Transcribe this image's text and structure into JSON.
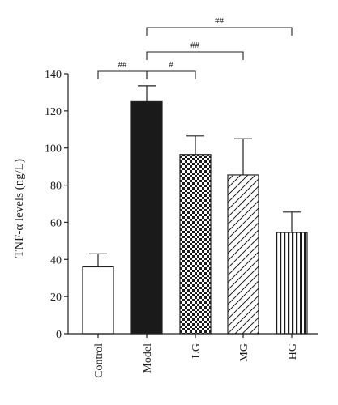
{
  "chart_data": {
    "type": "bar",
    "ylabel": "TNF-α levels (ng/L)",
    "categories": [
      "Control",
      "Model",
      "LG",
      "MG",
      "HG"
    ],
    "values": [
      36,
      125,
      96.5,
      85.5,
      54.5
    ],
    "errors": [
      7,
      8.5,
      10,
      19.5,
      11
    ],
    "ylim": [
      0,
      140
    ],
    "yticks": [
      0,
      20,
      40,
      60,
      80,
      100,
      120,
      140
    ],
    "grid": false,
    "colors": {
      "bar_stroke": "#222222",
      "Control": "#ffffff",
      "Model": "#1a1a1a"
    },
    "fills": [
      "white",
      "solid-black",
      "checkerboard",
      "diagonal-hatch",
      "vertical-stripes"
    ],
    "significance": [
      {
        "from": "Control",
        "to": "Model",
        "label": "##"
      },
      {
        "from": "Model",
        "to": "LG",
        "label": "#"
      },
      {
        "from": "Model",
        "to": "MG",
        "label": "##"
      },
      {
        "from": "Model",
        "to": "HG",
        "label": "##"
      }
    ]
  }
}
